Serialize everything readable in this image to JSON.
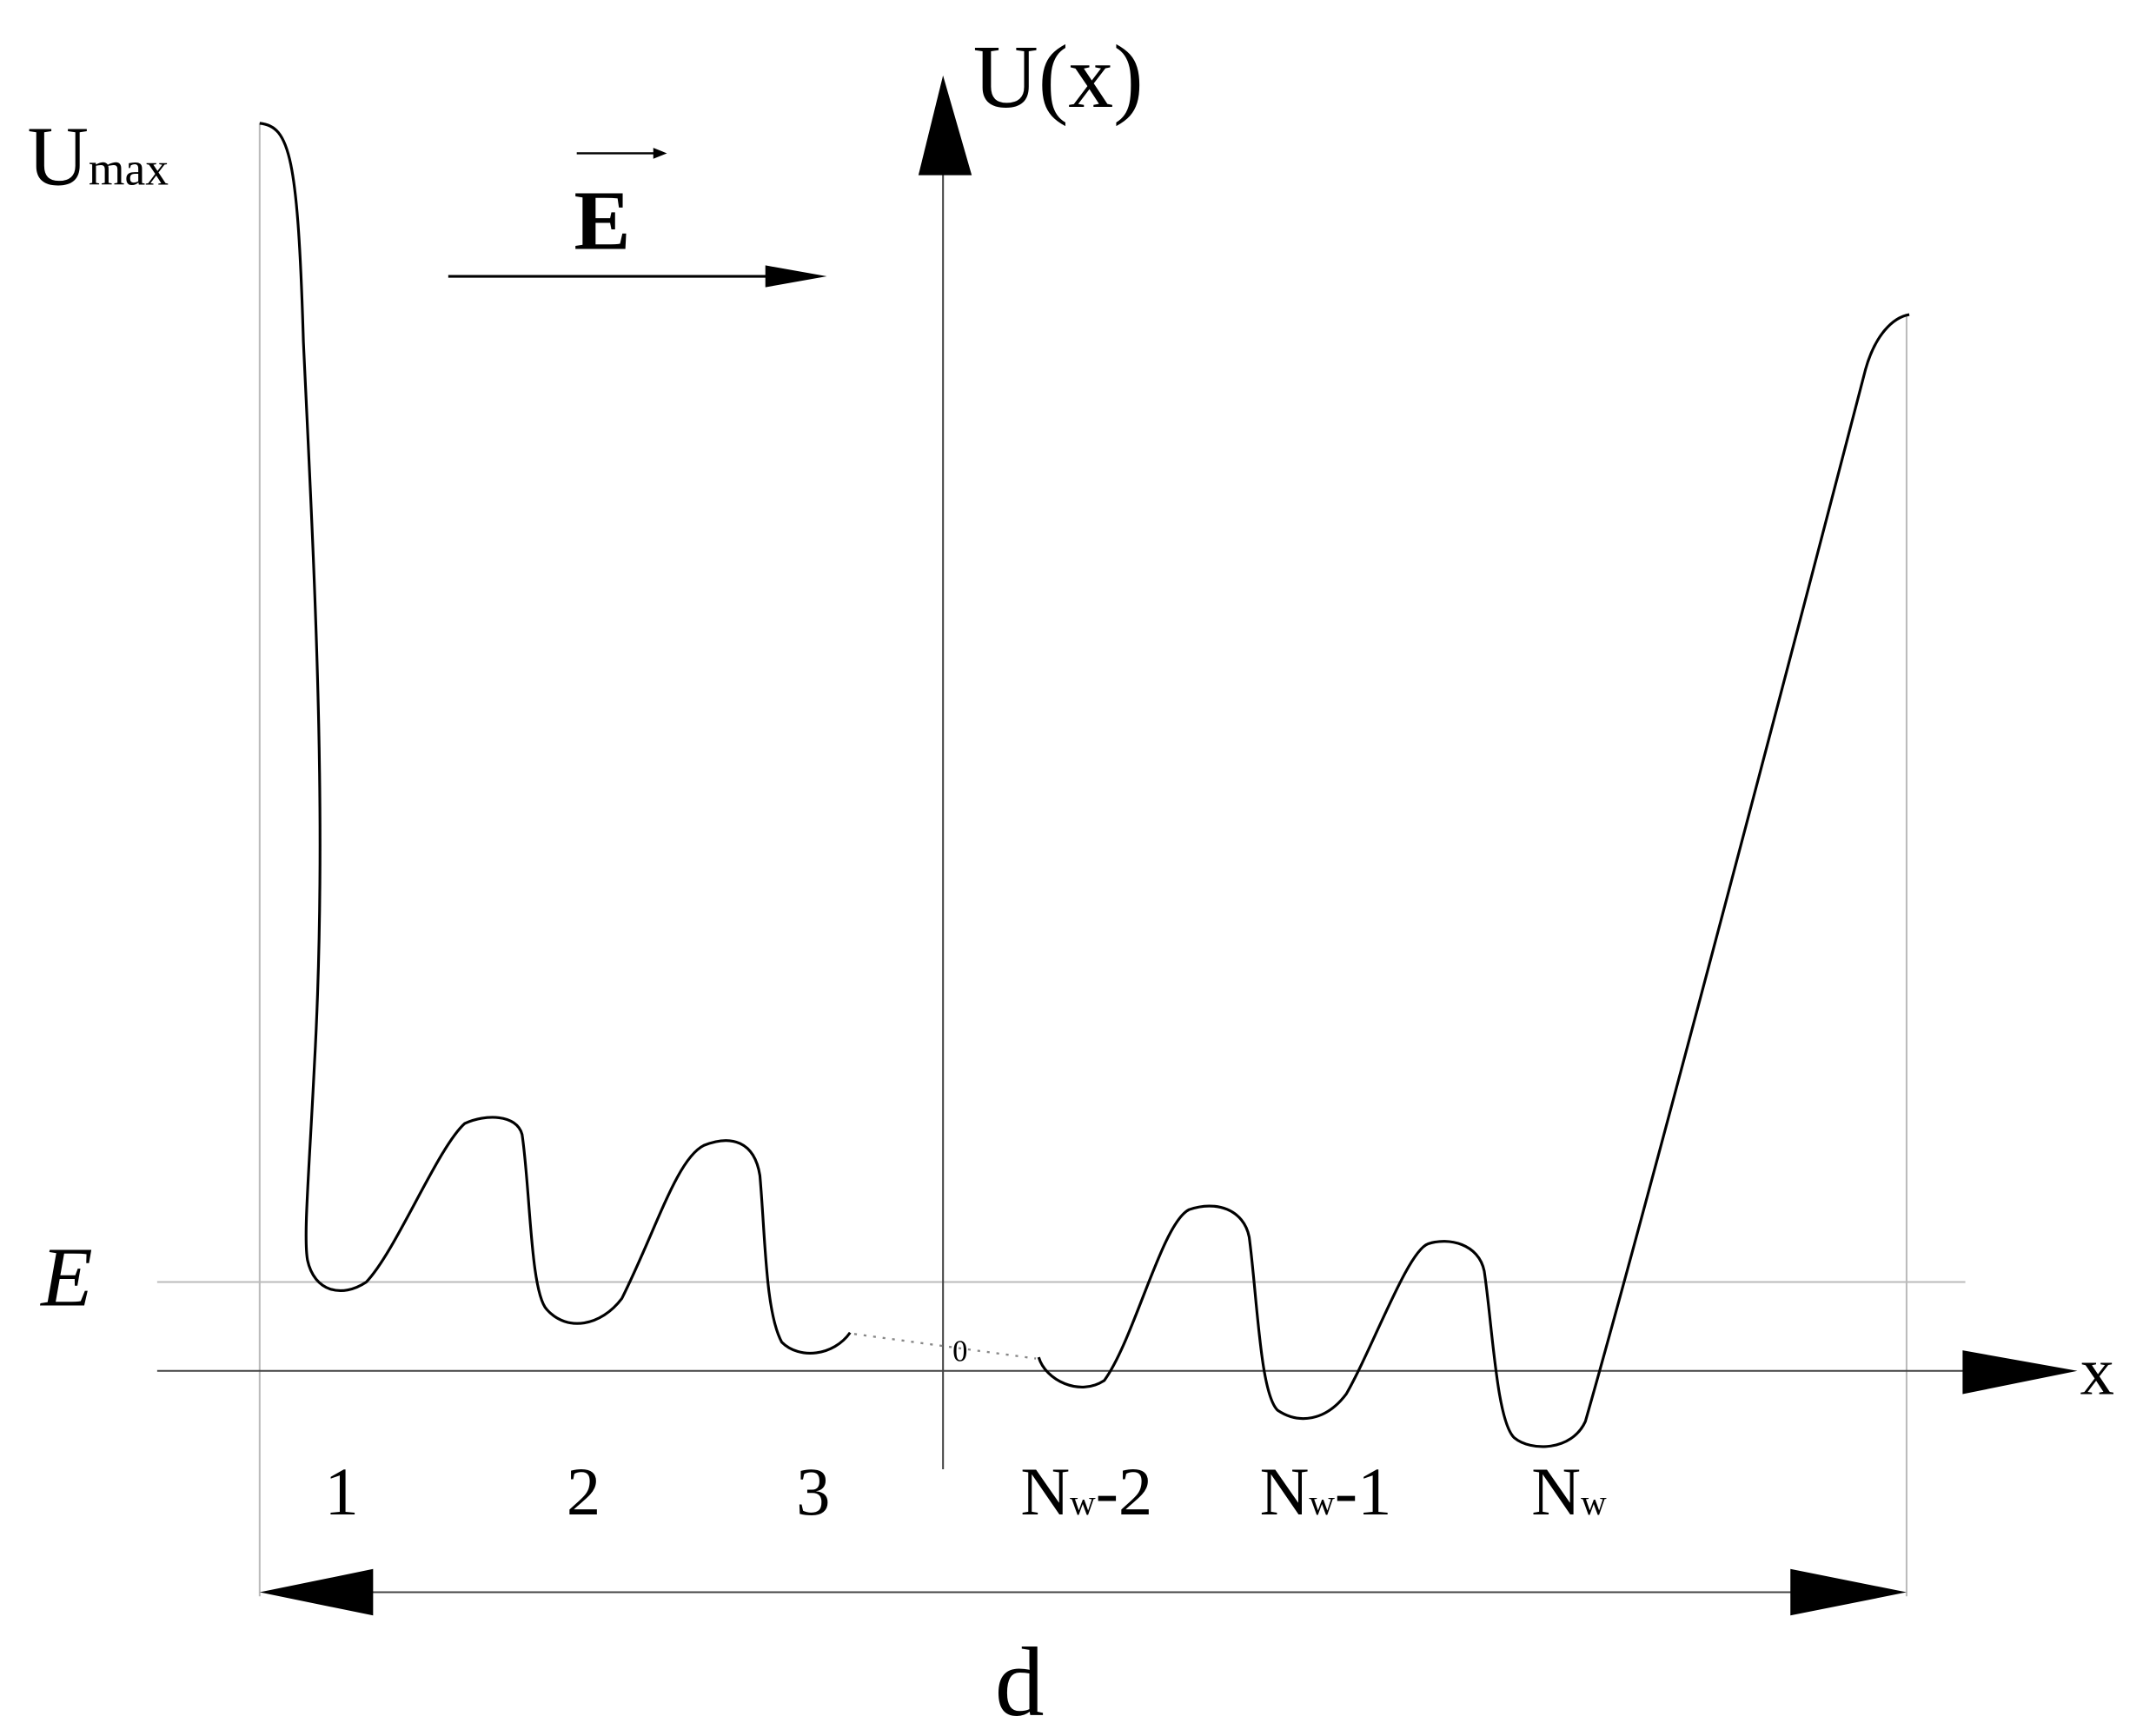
{
  "axes": {
    "y_label": "U(x)",
    "x_label": "x",
    "origin": "0"
  },
  "umax": {
    "base": "U",
    "sub": "max"
  },
  "field": "E",
  "energy": "E",
  "wells": [
    {
      "base": "1"
    },
    {
      "base": "2"
    },
    {
      "base": "3"
    },
    {
      "base": "N",
      "sub": "w",
      "suffix": "-2"
    },
    {
      "base": "N",
      "sub": "w",
      "suffix": "-1"
    },
    {
      "base": "N",
      "sub": "w"
    }
  ],
  "width": "d"
}
